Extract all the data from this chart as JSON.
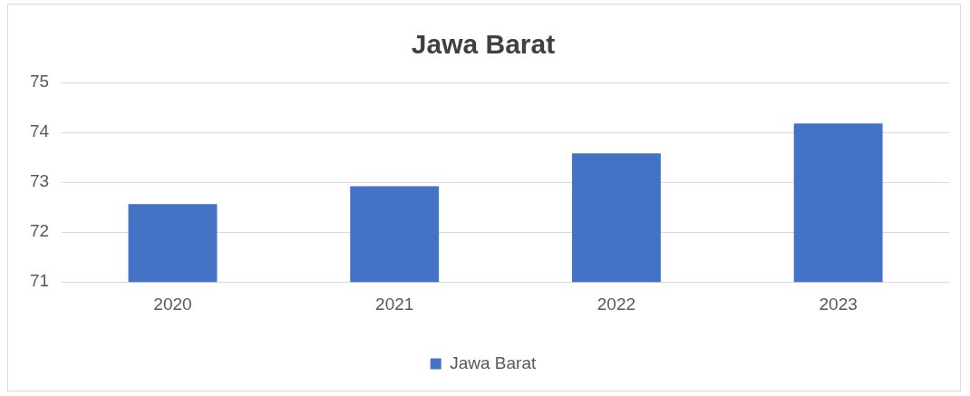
{
  "chart_data": {
    "type": "bar",
    "title": "Jawa Barat",
    "categories": [
      "2020",
      "2021",
      "2022",
      "2023"
    ],
    "series": [
      {
        "name": "Jawa Barat",
        "color": "#4472c4",
        "values": [
          72.56,
          72.92,
          73.58,
          74.18
        ]
      }
    ],
    "ylim": [
      71,
      75
    ],
    "yticks": [
      71,
      72,
      73,
      74,
      75
    ],
    "grid": "y",
    "legend": "bottom"
  }
}
